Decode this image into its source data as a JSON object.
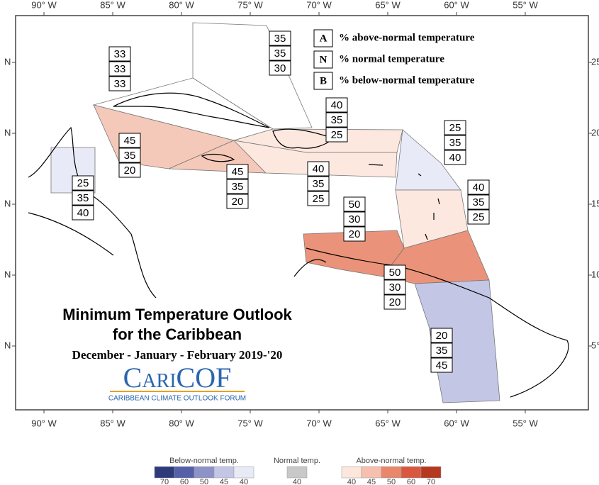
{
  "map": {
    "lon_labels": [
      "90° W",
      "85° W",
      "80° W",
      "75° W",
      "70° W",
      "65° W",
      "60° W",
      "55° W"
    ],
    "lat_labels_left": [
      "N",
      "N",
      "N",
      "N",
      "N"
    ],
    "lat_labels_right": [
      "25",
      "20",
      "15",
      "10",
      "5°"
    ]
  },
  "key": [
    {
      "letter": "A",
      "text": "% above-normal temperature"
    },
    {
      "letter": "N",
      "text": "% normal temperature"
    },
    {
      "letter": "B",
      "text": "% below-normal temperature"
    }
  ],
  "regions": [
    {
      "color": "#ffffff",
      "above": 35,
      "normal": 35,
      "below": 30
    },
    {
      "color": "#ffffff",
      "above": 33,
      "normal": 33,
      "below": 33
    },
    {
      "color": "#f4c3b1",
      "above": 45,
      "normal": 35,
      "below": 20
    },
    {
      "color": "#f4c3b1",
      "above": 45,
      "normal": 35,
      "below": 20
    },
    {
      "color": "#fde6dc",
      "above": 40,
      "normal": 35,
      "below": 25
    },
    {
      "color": "#fde6dc",
      "above": 40,
      "normal": 35,
      "below": 25
    },
    {
      "color": "#e6e9f6",
      "above": 25,
      "normal": 35,
      "below": 40
    },
    {
      "color": "#e6e9f6",
      "above": 25,
      "normal": 35,
      "below": 40
    },
    {
      "color": "#fde6dc",
      "above": 40,
      "normal": 35,
      "below": 25
    },
    {
      "color": "#e9876c",
      "above": 50,
      "normal": 30,
      "below": 20
    },
    {
      "color": "#e9876c",
      "above": 50,
      "normal": 30,
      "below": 20
    },
    {
      "color": "#bcc0e2",
      "above": 20,
      "normal": 35,
      "below": 45
    }
  ],
  "title": {
    "line1": "Minimum Temperature Outlook",
    "line2": "for the Caribbean",
    "period": "December - January - February 2019-'20"
  },
  "logo": {
    "name": "CariCOF",
    "subtitle": "CARIBBEAN CLIMATE OUTLOOK FORUM"
  },
  "colorbar": {
    "below": {
      "label": "Below-normal temp.",
      "colors": [
        "#2e3a7a",
        "#5560a8",
        "#8d92c8",
        "#c3c6e5",
        "#e8eaf6"
      ],
      "ticks": [
        70,
        60,
        50,
        45,
        40
      ]
    },
    "normal": {
      "label": "Normal temp.",
      "colors": [
        "#c8c8c8"
      ],
      "ticks": [
        40
      ]
    },
    "above": {
      "label": "Above-normal temp.",
      "colors": [
        "#fde6dc",
        "#f6bfae",
        "#e9876c",
        "#d9573f",
        "#b5381f"
      ],
      "ticks": [
        40,
        45,
        50,
        60,
        70
      ]
    }
  }
}
